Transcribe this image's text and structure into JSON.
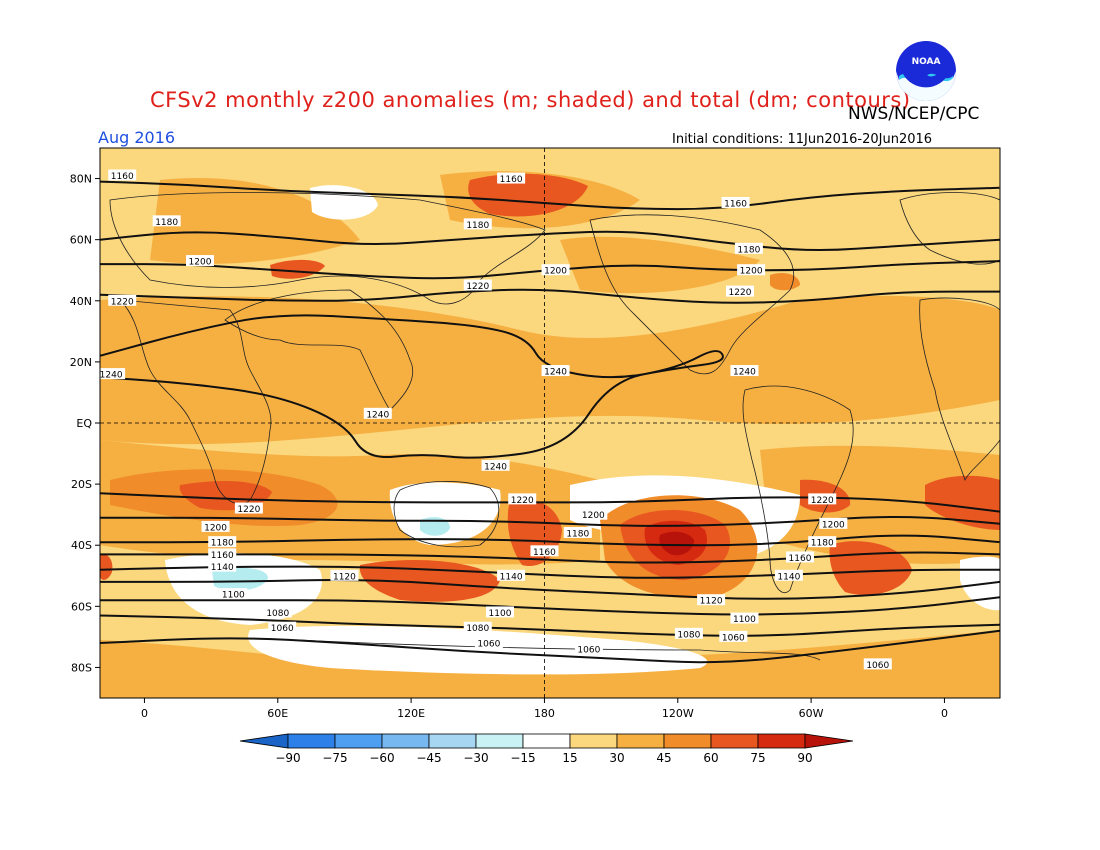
{
  "header": {
    "title": "CFSv2 monthly z200 anomalies (m; shaded) and total (dm; contours)",
    "org": "NWS/NCEP/CPC",
    "month": "Aug 2016",
    "initial_conditions": "Initial conditions: 11Jun2016-20Jun2016",
    "logo_text": "NOAA"
  },
  "axes": {
    "lat_labels": [
      "80N",
      "60N",
      "40N",
      "20N",
      "EQ",
      "20S",
      "40S",
      "60S",
      "80S"
    ],
    "lat_values": [
      80,
      60,
      40,
      20,
      0,
      -20,
      -40,
      -60,
      -80
    ],
    "lon_labels": [
      "0",
      "60E",
      "120E",
      "180",
      "120W",
      "60W",
      "0"
    ],
    "lon_values": [
      0,
      60,
      120,
      180,
      240,
      300,
      360
    ],
    "lat_range": [
      -90,
      90
    ],
    "lon_range": [
      -20,
      385
    ]
  },
  "colors": {
    "ocean_base": "#fbd77e",
    "white": "#ffffff",
    "light_orange": "#f6b042",
    "orange": "#f08c2a",
    "red_orange": "#e85720",
    "red": "#d52a10",
    "dark_red": "#b8130a",
    "light_cyan": "#b4ecf0",
    "contour": "#111111"
  },
  "colorbar": {
    "levels": [
      -90,
      -75,
      -60,
      -45,
      -30,
      -15,
      15,
      30,
      45,
      60,
      75,
      90
    ],
    "labels": [
      "-90",
      "-75",
      "-60",
      "-45",
      "-30",
      "-15",
      "15",
      "30",
      "45",
      "60",
      "75",
      "90"
    ],
    "colors": [
      "#1a64c8",
      "#2c80e8",
      "#4e9ef2",
      "#78b8f0",
      "#a7d6f3",
      "#c9f2f4",
      "#ffffff",
      "#fbd77e",
      "#f6b042",
      "#f08c2a",
      "#e85720",
      "#d52a10",
      "#b8130a"
    ]
  },
  "contours": [
    {
      "label": "1060",
      "points": [
        [
          -20,
          -72
        ],
        [
          40,
          -70
        ],
        [
          90,
          -72
        ],
        [
          150,
          -75
        ],
        [
          210,
          -77
        ],
        [
          260,
          -79
        ],
        [
          320,
          -74
        ],
        [
          385,
          -68
        ]
      ],
      "labels_at": [
        [
          62,
          -67
        ],
        [
          155,
          -72
        ],
        [
          200,
          -74
        ],
        [
          265,
          -70
        ],
        [
          330,
          -79
        ]
      ]
    },
    {
      "label": "1080",
      "points": [
        [
          -20,
          -63
        ],
        [
          40,
          -64
        ],
        [
          100,
          -66
        ],
        [
          160,
          -67
        ],
        [
          220,
          -69
        ],
        [
          280,
          -70
        ],
        [
          340,
          -67
        ],
        [
          385,
          -66
        ]
      ],
      "labels_at": [
        [
          60,
          -62
        ],
        [
          150,
          -67
        ],
        [
          245,
          -69
        ]
      ]
    },
    {
      "label": "1100",
      "points": [
        [
          -20,
          -58
        ],
        [
          40,
          -58
        ],
        [
          100,
          -58
        ],
        [
          160,
          -60
        ],
        [
          220,
          -62
        ],
        [
          280,
          -63
        ],
        [
          340,
          -61
        ],
        [
          385,
          -57
        ]
      ],
      "labels_at": [
        [
          40,
          -56
        ],
        [
          160,
          -62
        ],
        [
          270,
          -64
        ]
      ]
    },
    {
      "label": "1120",
      "points": [
        [
          -20,
          -52
        ],
        [
          40,
          -52
        ],
        [
          100,
          -51
        ],
        [
          160,
          -54
        ],
        [
          220,
          -56
        ],
        [
          280,
          -58
        ],
        [
          340,
          -56
        ],
        [
          385,
          -52
        ]
      ],
      "labels_at": [
        [
          90,
          -50
        ],
        [
          255,
          -58
        ]
      ]
    },
    {
      "label": "1140",
      "points": [
        [
          -20,
          -48
        ],
        [
          40,
          -47
        ],
        [
          100,
          -47
        ],
        [
          160,
          -49
        ],
        [
          220,
          -51
        ],
        [
          280,
          -50
        ],
        [
          340,
          -48
        ],
        [
          385,
          -48
        ]
      ],
      "labels_at": [
        [
          35,
          -47
        ],
        [
          165,
          -50
        ],
        [
          290,
          -50
        ]
      ]
    },
    {
      "label": "1160",
      "points": [
        [
          -20,
          -43
        ],
        [
          40,
          -43
        ],
        [
          100,
          -43
        ],
        [
          160,
          -44
        ],
        [
          220,
          -46
        ],
        [
          280,
          -45
        ],
        [
          340,
          -42
        ],
        [
          385,
          -43
        ]
      ],
      "labels_at": [
        [
          35,
          -43
        ],
        [
          180,
          -42
        ],
        [
          295,
          -44
        ]
      ]
    },
    {
      "label": "1180",
      "points": [
        [
          -20,
          -39
        ],
        [
          40,
          -39
        ],
        [
          100,
          -38
        ],
        [
          160,
          -38
        ],
        [
          220,
          -40
        ],
        [
          280,
          -40
        ],
        [
          340,
          -36
        ],
        [
          385,
          -39
        ]
      ],
      "labels_at": [
        [
          35,
          -39
        ],
        [
          195,
          -36
        ],
        [
          305,
          -39
        ]
      ]
    },
    {
      "label": "1200",
      "points": [
        [
          -20,
          -31
        ],
        [
          40,
          -31
        ],
        [
          100,
          -32
        ],
        [
          160,
          -32
        ],
        [
          220,
          -34
        ],
        [
          280,
          -33
        ],
        [
          340,
          -30
        ],
        [
          385,
          -33
        ]
      ],
      "labels_at": [
        [
          32,
          -34
        ],
        [
          202,
          -30
        ],
        [
          310,
          -33
        ]
      ]
    },
    {
      "label": "1220",
      "points": [
        [
          -20,
          -23
        ],
        [
          40,
          -25
        ],
        [
          100,
          -26
        ],
        [
          160,
          -26
        ],
        [
          220,
          -26
        ],
        [
          280,
          -24
        ],
        [
          340,
          -25
        ],
        [
          385,
          -29
        ]
      ],
      "labels_at": [
        [
          47,
          -28
        ],
        [
          170,
          -25
        ],
        [
          305,
          -25
        ]
      ]
    },
    {
      "label": "1240",
      "points": [
        [
          -20,
          15
        ],
        [
          20,
          13
        ],
        [
          60,
          9
        ],
        [
          90,
          0
        ],
        [
          100,
          -12
        ],
        [
          125,
          -10
        ],
        [
          150,
          -12
        ],
        [
          190,
          -8
        ],
        [
          210,
          14
        ],
        [
          240,
          18
        ],
        [
          258,
          25
        ],
        [
          262,
          20
        ],
        [
          240,
          18
        ],
        [
          210,
          14
        ],
        [
          180,
          18
        ],
        [
          172,
          28
        ],
        [
          150,
          32
        ],
        [
          110,
          34
        ],
        [
          60,
          36
        ],
        [
          20,
          30
        ],
        [
          -20,
          22
        ]
      ],
      "labels_at": [
        [
          -15,
          16
        ],
        [
          105,
          3
        ],
        [
          158,
          -14
        ],
        [
          185,
          17
        ],
        [
          270,
          17
        ]
      ]
    },
    {
      "label": "1220",
      "points": [
        [
          -20,
          42
        ],
        [
          20,
          41
        ],
        [
          60,
          40
        ],
        [
          100,
          40
        ],
        [
          140,
          43
        ],
        [
          180,
          44
        ],
        [
          220,
          41
        ],
        [
          260,
          39
        ],
        [
          300,
          40
        ],
        [
          340,
          43
        ],
        [
          385,
          43
        ]
      ],
      "labels_at": [
        [
          -10,
          40
        ],
        [
          150,
          45
        ],
        [
          268,
          43
        ]
      ]
    },
    {
      "label": "1200",
      "points": [
        [
          -20,
          52
        ],
        [
          20,
          52
        ],
        [
          60,
          50
        ],
        [
          100,
          48
        ],
        [
          140,
          47
        ],
        [
          180,
          50
        ],
        [
          220,
          52
        ],
        [
          260,
          50
        ],
        [
          300,
          50
        ],
        [
          340,
          52
        ],
        [
          385,
          53
        ]
      ],
      "labels_at": [
        [
          25,
          53
        ],
        [
          185,
          50
        ],
        [
          273,
          50
        ]
      ]
    },
    {
      "label": "1180",
      "points": [
        [
          -20,
          60
        ],
        [
          20,
          63
        ],
        [
          60,
          61
        ],
        [
          100,
          58
        ],
        [
          140,
          60
        ],
        [
          180,
          62
        ],
        [
          220,
          63
        ],
        [
          260,
          59
        ],
        [
          300,
          56
        ],
        [
          340,
          58
        ],
        [
          385,
          60
        ]
      ],
      "labels_at": [
        [
          10,
          66
        ],
        [
          150,
          65
        ],
        [
          272,
          57
        ]
      ]
    },
    {
      "label": "1160",
      "points": [
        [
          -20,
          79
        ],
        [
          20,
          78
        ],
        [
          60,
          76
        ],
        [
          100,
          75
        ],
        [
          140,
          74
        ],
        [
          180,
          72
        ],
        [
          220,
          70
        ],
        [
          260,
          70
        ],
        [
          300,
          74
        ],
        [
          340,
          76
        ],
        [
          385,
          77
        ]
      ],
      "labels_at": [
        [
          -10,
          81
        ],
        [
          165,
          80
        ],
        [
          266,
          72
        ]
      ]
    }
  ]
}
